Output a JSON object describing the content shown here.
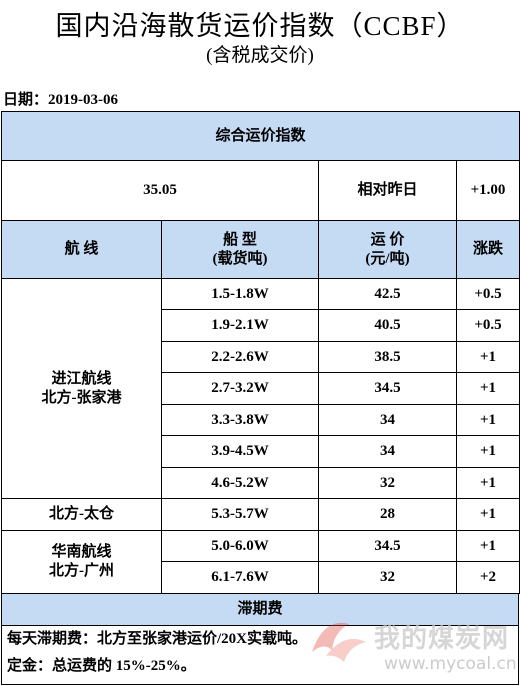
{
  "header": {
    "title": "国内沿海散货运价指数（CCBF）",
    "subtitle": "(含税成交价)",
    "date_label": "日期：",
    "date_value": "2019-03-06"
  },
  "composite": {
    "heading": "综合运价指数",
    "value": "35.05",
    "compare_label": "相对昨日",
    "change": "+1.00"
  },
  "columns": {
    "route": "航  线",
    "ship_type_line1": "船  型",
    "ship_type_line2": "(载货吨)",
    "rate_line1": "运  价",
    "rate_line2": "(元/吨)",
    "change": "涨跌"
  },
  "route_groups": [
    {
      "name_line1": "进江航线",
      "name_line2": "北方-张家港",
      "rows": [
        {
          "ship": "1.5-1.8W",
          "rate": "42.5",
          "change": "+0.5"
        },
        {
          "ship": "1.9-2.1W",
          "rate": "40.5",
          "change": "+0.5"
        },
        {
          "ship": "2.2-2.6W",
          "rate": "38.5",
          "change": "+1"
        },
        {
          "ship": "2.7-3.2W",
          "rate": "34.5",
          "change": "+1"
        },
        {
          "ship": "3.3-3.8W",
          "rate": "34",
          "change": "+1"
        },
        {
          "ship": "3.9-4.5W",
          "rate": "34",
          "change": "+1"
        },
        {
          "ship": "4.6-5.2W",
          "rate": "32",
          "change": "+1"
        }
      ]
    },
    {
      "name_line1": "北方-太仓",
      "name_line2": "",
      "rows": [
        {
          "ship": "5.3-5.7W",
          "rate": "28",
          "change": "+1"
        }
      ]
    },
    {
      "name_line1": "华南航线",
      "name_line2": "北方-广州",
      "rows": [
        {
          "ship": "5.0-6.0W",
          "rate": "34.5",
          "change": "+1"
        },
        {
          "ship": "6.1-7.6W",
          "rate": "32",
          "change": "+2"
        }
      ]
    }
  ],
  "demurrage": {
    "heading": "滞期费",
    "line1": "每天滞期费：北方至张家港运价/20X实载吨。",
    "line2": "定金：总运费的 15%-25%。"
  },
  "watermark": {
    "text": "我的煤炭网",
    "url": "www.mycoal.cn",
    "logo_color": "#e03a2a"
  }
}
